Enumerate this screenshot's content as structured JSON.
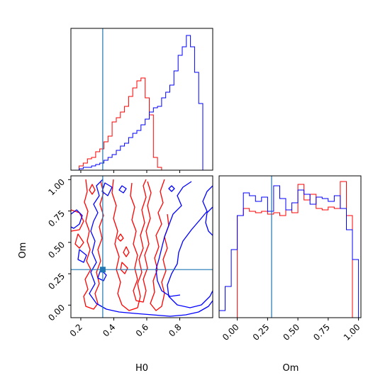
{
  "colors": {
    "red_series": "#ff0000",
    "blue_series": "#0000ff",
    "truth_line": "#1f77b4",
    "frame": "#000000"
  },
  "chart_data": [
    {
      "panel": "H0 marginal histogram",
      "type": "histogram",
      "xlim": [
        0.14,
        1.0
      ],
      "ylim": [
        0,
        1.0
      ],
      "truth_value": 0.333,
      "bins": [
        0.14,
        0.165,
        0.19,
        0.215,
        0.24,
        0.265,
        0.29,
        0.315,
        0.34,
        0.365,
        0.39,
        0.415,
        0.44,
        0.465,
        0.49,
        0.515,
        0.54,
        0.565,
        0.59,
        0.615,
        0.64,
        0.665,
        0.69,
        0.715,
        0.74,
        0.765,
        0.79,
        0.815,
        0.84,
        0.865,
        0.89,
        0.915,
        0.94,
        0.965,
        0.99
      ],
      "series": [
        {
          "color": "red",
          "counts": [
            0.0,
            0.0,
            0.03,
            0.05,
            0.08,
            0.09,
            0.13,
            0.15,
            0.2,
            0.24,
            0.34,
            0.37,
            0.41,
            0.45,
            0.52,
            0.58,
            0.63,
            0.65,
            0.51,
            0.39,
            0.09,
            0.02,
            0.0,
            0.0,
            0.0,
            0.0,
            0.0,
            0.0,
            0.0,
            0.0,
            0.0,
            0.0,
            0.0,
            0.0
          ]
        },
        {
          "color": "blue",
          "counts": [
            0.0,
            0.0,
            0.01,
            0.02,
            0.02,
            0.03,
            0.04,
            0.05,
            0.07,
            0.09,
            0.11,
            0.14,
            0.17,
            0.19,
            0.23,
            0.26,
            0.28,
            0.32,
            0.36,
            0.41,
            0.44,
            0.45,
            0.51,
            0.55,
            0.6,
            0.7,
            0.81,
            0.87,
            0.95,
            0.87,
            0.69,
            0.47,
            0.0,
            0.0
          ]
        }
      ]
    },
    {
      "panel": "H0 vs Om contour",
      "type": "contour",
      "x_label": "H0",
      "y_label": "Om",
      "xlim": [
        0.14,
        1.0
      ],
      "ylim": [
        -0.1,
        1.03
      ],
      "x_ticks": [
        "0.2",
        "0.4",
        "0.6",
        "0.8"
      ],
      "y_ticks": [
        "0.00",
        "0.25",
        "0.50",
        "0.75",
        "1.00"
      ],
      "truth": {
        "H0": 0.333,
        "Om": 0.283
      }
    },
    {
      "panel": "Om marginal histogram",
      "type": "histogram",
      "x_label": "Om",
      "xlim": [
        -0.15,
        1.02
      ],
      "ylim": [
        0,
        1.0
      ],
      "x_ticks": [
        "0.00",
        "0.25",
        "0.50",
        "0.75",
        "1.00"
      ],
      "truth_value": 0.283,
      "bins": [
        -0.15,
        -0.1,
        -0.05,
        0.0,
        0.05,
        0.1,
        0.15,
        0.2,
        0.25,
        0.3,
        0.35,
        0.4,
        0.45,
        0.5,
        0.55,
        0.6,
        0.65,
        0.7,
        0.75,
        0.8,
        0.85,
        0.9,
        0.95,
        1.0
      ],
      "series": [
        {
          "color": "red",
          "counts": [
            0.0,
            0.0,
            0.0,
            0.72,
            0.77,
            0.75,
            0.74,
            0.75,
            0.73,
            0.74,
            0.72,
            0.76,
            0.74,
            0.94,
            0.83,
            0.87,
            0.77,
            0.76,
            0.78,
            0.77,
            0.96,
            0.72,
            0.0
          ]
        },
        {
          "color": "blue",
          "counts": [
            0.05,
            0.22,
            0.48,
            0.72,
            0.88,
            0.86,
            0.82,
            0.85,
            0.75,
            0.93,
            0.84,
            0.76,
            0.81,
            0.9,
            0.87,
            0.8,
            0.85,
            0.84,
            0.82,
            0.86,
            0.77,
            0.62,
            0.41
          ]
        }
      ]
    }
  ]
}
